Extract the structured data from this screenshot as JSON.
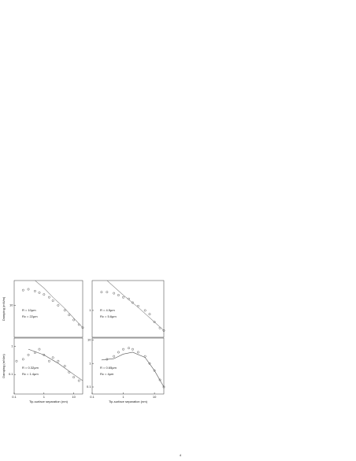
{
  "chart_data": [
    {
      "type": "scatter",
      "log_x": true,
      "log_y": true,
      "xlim": [
        0.1,
        20
      ],
      "ylim": [
        1,
        60
      ],
      "xticks": [],
      "yticks": [
        10
      ],
      "ylabel": "Damping (mN/m)",
      "annotations": [
        "R = 10µm",
        "Rc = 22µm"
      ],
      "series": [
        {
          "style": "marker",
          "color": "#333333",
          "x": [
            0.2,
            0.3,
            0.5,
            0.7,
            1,
            1.5,
            2,
            3,
            5,
            7,
            10,
            15,
            20
          ],
          "values": [
            30,
            32,
            28,
            25,
            22,
            18,
            14,
            10,
            7,
            5,
            3.5,
            2.5,
            2
          ]
        },
        {
          "style": "line",
          "color": "#888888",
          "x": [
            0.5,
            1,
            2,
            5,
            10,
            20
          ],
          "values": [
            60,
            35,
            18,
            8,
            4,
            2
          ]
        }
      ]
    },
    {
      "type": "scatter",
      "log_x": true,
      "log_y": true,
      "xlim": [
        0.1,
        20
      ],
      "ylim": [
        0.2,
        6
      ],
      "xticks": [],
      "yticks": [
        1
      ],
      "annotations": [
        "R = 4.5µm",
        "Rc = 5.6µm"
      ],
      "series": [
        {
          "style": "marker",
          "color": "#333333",
          "x": [
            0.2,
            0.3,
            0.5,
            0.7,
            1,
            1.5,
            2,
            3,
            5,
            7,
            10,
            15,
            20
          ],
          "values": [
            3,
            3,
            2.8,
            2.5,
            2.2,
            2,
            1.6,
            1.3,
            1,
            0.8,
            0.5,
            0.35,
            0.3
          ]
        },
        {
          "style": "line",
          "color": "#888888",
          "x": [
            0.3,
            1,
            3,
            10,
            20
          ],
          "values": [
            6,
            2.5,
            1.2,
            0.5,
            0.3
          ]
        }
      ]
    },
    {
      "type": "scatter",
      "log_x": true,
      "log_y": true,
      "xlim": [
        0.1,
        20
      ],
      "ylim": [
        0.02,
        2
      ],
      "xticks": [
        0.1,
        1,
        10
      ],
      "yticks": [
        0.1,
        1
      ],
      "ylabel": "Damping (mN/m)",
      "xlabel": "Tip-surface separation (nm)",
      "annotations": [
        "R = 0.32µm",
        "Rc = 1.4µm"
      ],
      "series": [
        {
          "style": "marker",
          "color": "#333333",
          "x": [
            0.12,
            0.2,
            0.3,
            0.5,
            0.7,
            1,
            1.5,
            2,
            3,
            5,
            7,
            10,
            15
          ],
          "values": [
            0.3,
            0.35,
            0.5,
            0.6,
            0.8,
            0.5,
            0.3,
            0.4,
            0.3,
            0.2,
            0.12,
            0.08,
            0.06
          ]
        },
        {
          "style": "line",
          "color": "#555555",
          "x": [
            0.3,
            1,
            3,
            10,
            20
          ],
          "values": [
            0.8,
            0.5,
            0.25,
            0.1,
            0.06
          ]
        }
      ]
    },
    {
      "type": "scatter",
      "log_x": true,
      "log_y": true,
      "xlim": [
        0.1,
        20
      ],
      "ylim": [
        0.05,
        12
      ],
      "xticks": [
        0.1,
        1,
        10
      ],
      "yticks": [
        0.1,
        1,
        10
      ],
      "xlabel": "Tip-surface separation (nm)",
      "annotations": [
        "R = 0.65µm",
        "Rc = 4µm"
      ],
      "series": [
        {
          "style": "marker",
          "color": "#333333",
          "x": [
            0.3,
            0.5,
            0.7,
            1,
            1.5,
            2,
            3,
            5,
            7,
            10,
            15,
            20
          ],
          "values": [
            1.5,
            2,
            3,
            4,
            4.5,
            4,
            3,
            2,
            1,
            0.5,
            0.2,
            0.1
          ]
        },
        {
          "style": "line",
          "color": "#555555",
          "x": [
            0.2,
            0.5,
            1,
            2,
            5,
            10,
            20
          ],
          "values": [
            1.4,
            1.6,
            2.5,
            3,
            1.8,
            0.5,
            0.1
          ]
        }
      ]
    }
  ],
  "page": {
    "number": "4"
  }
}
